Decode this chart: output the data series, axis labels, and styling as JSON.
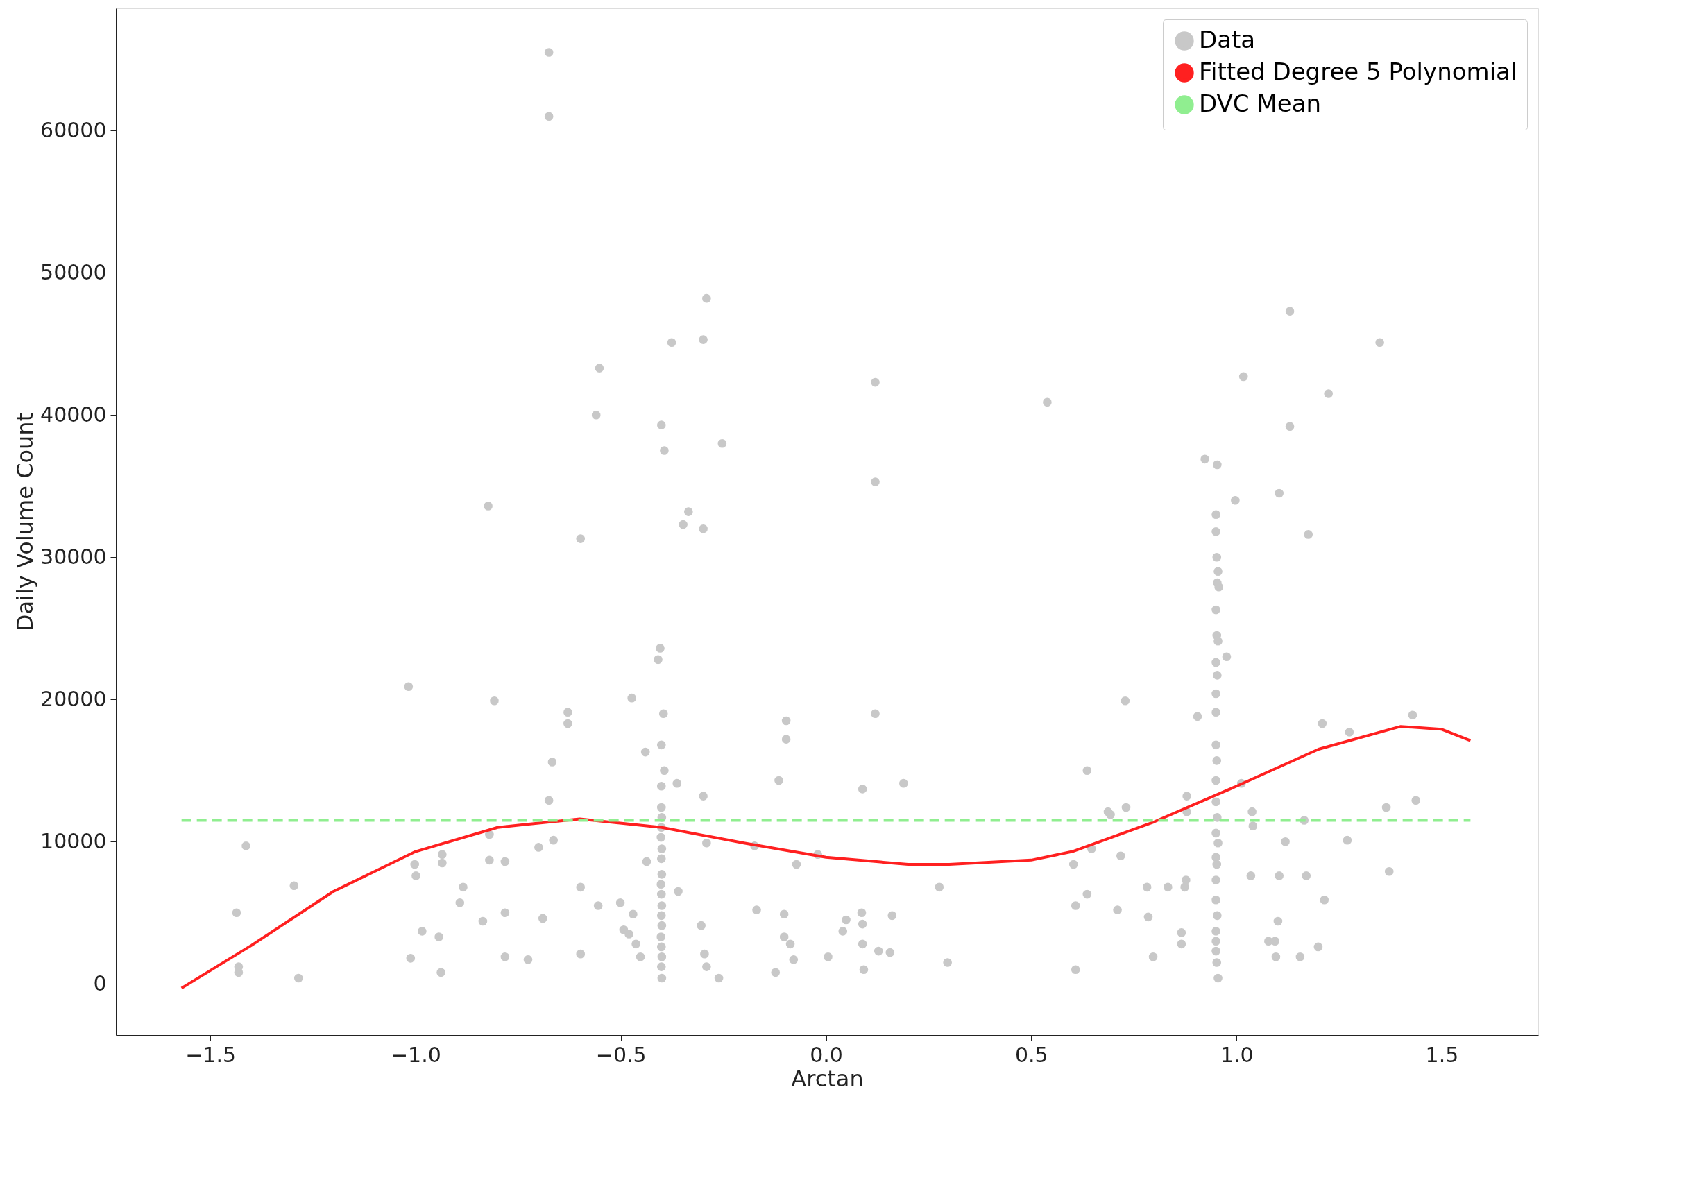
{
  "chart_data": {
    "type": "scatter",
    "xlabel": "Arctan",
    "ylabel": "Daily Volume Count",
    "legend": "top right",
    "grid": false,
    "xlim": [
      -1.73,
      1.735
    ],
    "ylim": [
      -3600,
      68600
    ],
    "xticks": [
      {
        "value": -1.5,
        "label": "−1.5"
      },
      {
        "value": -1.0,
        "label": "−1.0"
      },
      {
        "value": -0.5,
        "label": "−0.5"
      },
      {
        "value": 0.0,
        "label": "0.0"
      },
      {
        "value": 0.5,
        "label": "0.5"
      },
      {
        "value": 1.0,
        "label": "1.0"
      },
      {
        "value": 1.5,
        "label": "1.5"
      }
    ],
    "yticks": [
      0,
      10000,
      20000,
      30000,
      40000,
      50000,
      60000
    ],
    "series": [
      {
        "name": "Data",
        "marker": "circle",
        "color": "#c8c8c8",
        "x": [
          -0.675,
          -0.675,
          -0.823,
          -1.017,
          -0.808,
          -0.598,
          -0.552,
          -0.56,
          -0.629,
          -0.629,
          -0.667,
          -0.675,
          -0.473,
          -0.401,
          -0.394,
          -0.376,
          -0.299,
          -0.291,
          -0.335,
          -0.348,
          -0.299,
          -0.253,
          -0.404,
          -0.409,
          -0.396,
          -0.401,
          -0.44,
          -0.394,
          -0.401,
          -0.363,
          -0.299,
          0.539,
          0.12,
          0.12,
          0.12,
          0.089,
          0.189,
          -0.097,
          -0.097,
          -0.115,
          0.636,
          0.729,
          0.731,
          0.687,
          1.017,
          0.997,
          1.13,
          1.13,
          1.104,
          1.175,
          1.224,
          1.349,
          1.429,
          1.209,
          1.275,
          1.365,
          1.437,
          1.372,
          0.923,
          0.953,
          0.95,
          0.95,
          0.952,
          0.955,
          0.953,
          0.957,
          0.95,
          0.952,
          0.955,
          0.95,
          0.953,
          0.95,
          0.95,
          0.95,
          0.952,
          0.95,
          0.95,
          0.953,
          0.95,
          0.955,
          0.95,
          0.952,
          0.95,
          0.95,
          0.953,
          0.95,
          0.95,
          0.95,
          0.952,
          0.955,
          0.976,
          0.905,
          -0.401,
          -0.4,
          -0.401,
          -0.402,
          -0.4,
          -0.401,
          -0.4,
          -0.402,
          -0.401,
          -0.4,
          -0.401,
          -0.4,
          -0.402,
          -0.401,
          -0.4,
          -0.401,
          -0.4,
          -1.436,
          -1.413,
          -1.431,
          -1.431,
          -1.285,
          -1.296,
          -1.002,
          -0.999,
          -1.012,
          -0.984,
          -0.943,
          -0.938,
          -0.935,
          -0.935,
          -0.884,
          -0.892,
          -0.836,
          -0.82,
          -0.82,
          -0.782,
          -0.782,
          -0.782,
          -0.726,
          -0.7,
          -0.69,
          -0.664,
          -0.598,
          -0.598,
          -0.555,
          -0.501,
          -0.493,
          -0.48,
          -0.47,
          -0.463,
          -0.452,
          -0.437,
          -0.36,
          -0.304,
          -0.296,
          -0.291,
          -0.261,
          -0.291,
          -0.174,
          -0.169,
          -0.123,
          -0.102,
          -0.102,
          -0.087,
          -0.079,
          -0.072,
          -0.02,
          0.005,
          0.041,
          0.049,
          0.087,
          0.089,
          0.089,
          0.092,
          0.128,
          0.156,
          0.161,
          0.276,
          0.296,
          0.603,
          0.608,
          0.608,
          0.636,
          0.647,
          0.693,
          0.718,
          0.71,
          0.785,
          0.782,
          0.797,
          0.833,
          0.866,
          0.866,
          0.874,
          0.877,
          0.879,
          0.879,
          1.012,
          1.035,
          1.038,
          1.04,
          1.078,
          1.094,
          1.101,
          1.104,
          1.096,
          1.119,
          1.155,
          1.165,
          1.17,
          1.199,
          1.214,
          1.27
        ],
        "values": [
          65500,
          61000,
          33600,
          20900,
          19900,
          31300,
          43300,
          40000,
          19100,
          18300,
          15600,
          12900,
          20100,
          39300,
          37500,
          45100,
          45300,
          48200,
          33200,
          32300,
          32000,
          38000,
          23600,
          22800,
          19000,
          16800,
          16300,
          15000,
          13900,
          14100,
          13200,
          40900,
          42300,
          35300,
          19000,
          13700,
          14100,
          18500,
          17200,
          14300,
          15000,
          19900,
          12400,
          12100,
          42700,
          34000,
          47300,
          39200,
          34500,
          31600,
          41500,
          45100,
          18900,
          18300,
          17700,
          12400,
          12900,
          7900,
          36900,
          36500,
          33000,
          31800,
          30000,
          29000,
          28200,
          27900,
          26300,
          24500,
          24100,
          22600,
          21700,
          20400,
          19100,
          16800,
          15700,
          14300,
          12800,
          11700,
          10600,
          9900,
          8900,
          8400,
          7300,
          5900,
          4800,
          3700,
          3000,
          2300,
          1500,
          400,
          23000,
          18800,
          12400,
          11700,
          11000,
          10300,
          9500,
          8800,
          7700,
          7000,
          6300,
          5500,
          4800,
          4100,
          3300,
          2600,
          1900,
          1200,
          400,
          5000,
          9700,
          1200,
          800,
          400,
          6900,
          8400,
          7600,
          1800,
          3700,
          3300,
          800,
          9100,
          8500,
          6800,
          5700,
          4400,
          10500,
          8700,
          8600,
          5000,
          1900,
          1700,
          9600,
          4600,
          10100,
          6800,
          2100,
          5500,
          5700,
          3800,
          3500,
          4900,
          2800,
          1900,
          8600,
          6500,
          4100,
          2100,
          1200,
          400,
          9900,
          9700,
          5200,
          800,
          4900,
          3300,
          2800,
          1700,
          8400,
          9100,
          1900,
          3700,
          4500,
          5000,
          4200,
          2800,
          1000,
          2300,
          2200,
          4800,
          6800,
          1500,
          8400,
          5500,
          1000,
          6300,
          9500,
          11900,
          9000,
          5200,
          4700,
          6800,
          1900,
          6800,
          3600,
          2800,
          6800,
          7300,
          12100,
          13200,
          14100,
          7600,
          12100,
          11100,
          3000,
          3000,
          4400,
          7600,
          1900,
          10000,
          1900,
          11500,
          7600,
          2600,
          5900,
          10100
        ]
      },
      {
        "name": "Fitted Degree 5 Polynomial",
        "type": "line",
        "color": "#ff2020",
        "line_style": "solid",
        "x": [
          -1.57,
          -1.4,
          -1.2,
          -1.0,
          -0.8,
          -0.6,
          -0.4,
          -0.2,
          0.0,
          0.2,
          0.3,
          0.5,
          0.6,
          0.8,
          1.0,
          1.2,
          1.4,
          1.5,
          1.57
        ],
        "values": [
          -300,
          2700,
          6500,
          9300,
          11000,
          11600,
          11000,
          9900,
          8900,
          8400,
          8400,
          8700,
          9300,
          11400,
          13900,
          16500,
          18100,
          17900,
          17100
        ]
      },
      {
        "name": "DVC Mean",
        "type": "line",
        "color": "#90ee90",
        "line_style": "dashed",
        "x": [
          -1.57,
          1.57
        ],
        "values": [
          11500,
          11500
        ]
      }
    ]
  }
}
